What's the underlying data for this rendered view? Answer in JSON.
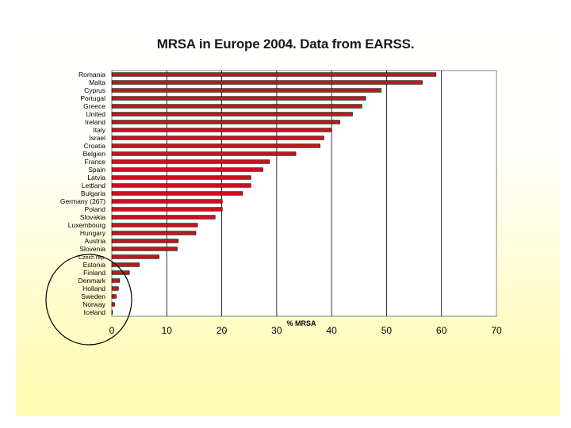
{
  "chart_data": {
    "type": "bar",
    "orientation": "horizontal",
    "title": "MRSA in Europe 2004. Data from EARSS.",
    "xlabel": "% MRSA",
    "ylabel": "",
    "xlim": [
      0,
      70
    ],
    "xticks": [
      0,
      10,
      20,
      30,
      40,
      50,
      60,
      70
    ],
    "grid": "vertical",
    "bar_color": "#c0161c",
    "categories": [
      "Romania",
      "Malta",
      "Cyprus",
      "Portugal",
      "Greece",
      "United",
      "Ireland",
      "Italy",
      "Israel",
      "Croatia",
      "Belgien",
      "France",
      "Spain",
      "Latvia",
      "Lettland",
      "Bulgaria",
      "Germany (267)",
      "Poland",
      "Slovakia",
      "Luxembourg",
      "Hungary",
      "Austria",
      "Slovenia",
      "Czech rep.",
      "Estonia",
      "Finland",
      "Denmark",
      "Holland",
      "Sweden",
      "Norway",
      "Iceland"
    ],
    "values": [
      59,
      56.5,
      49,
      46.2,
      45.5,
      43.8,
      41.5,
      40,
      38.6,
      37.9,
      33.5,
      28.7,
      27.5,
      25.3,
      25.3,
      23.8,
      20.1,
      20.1,
      18.8,
      15.6,
      15.3,
      12.1,
      11.9,
      8.6,
      5,
      3.2,
      1.4,
      1.2,
      0.8,
      0.5,
      0.1
    ]
  }
}
